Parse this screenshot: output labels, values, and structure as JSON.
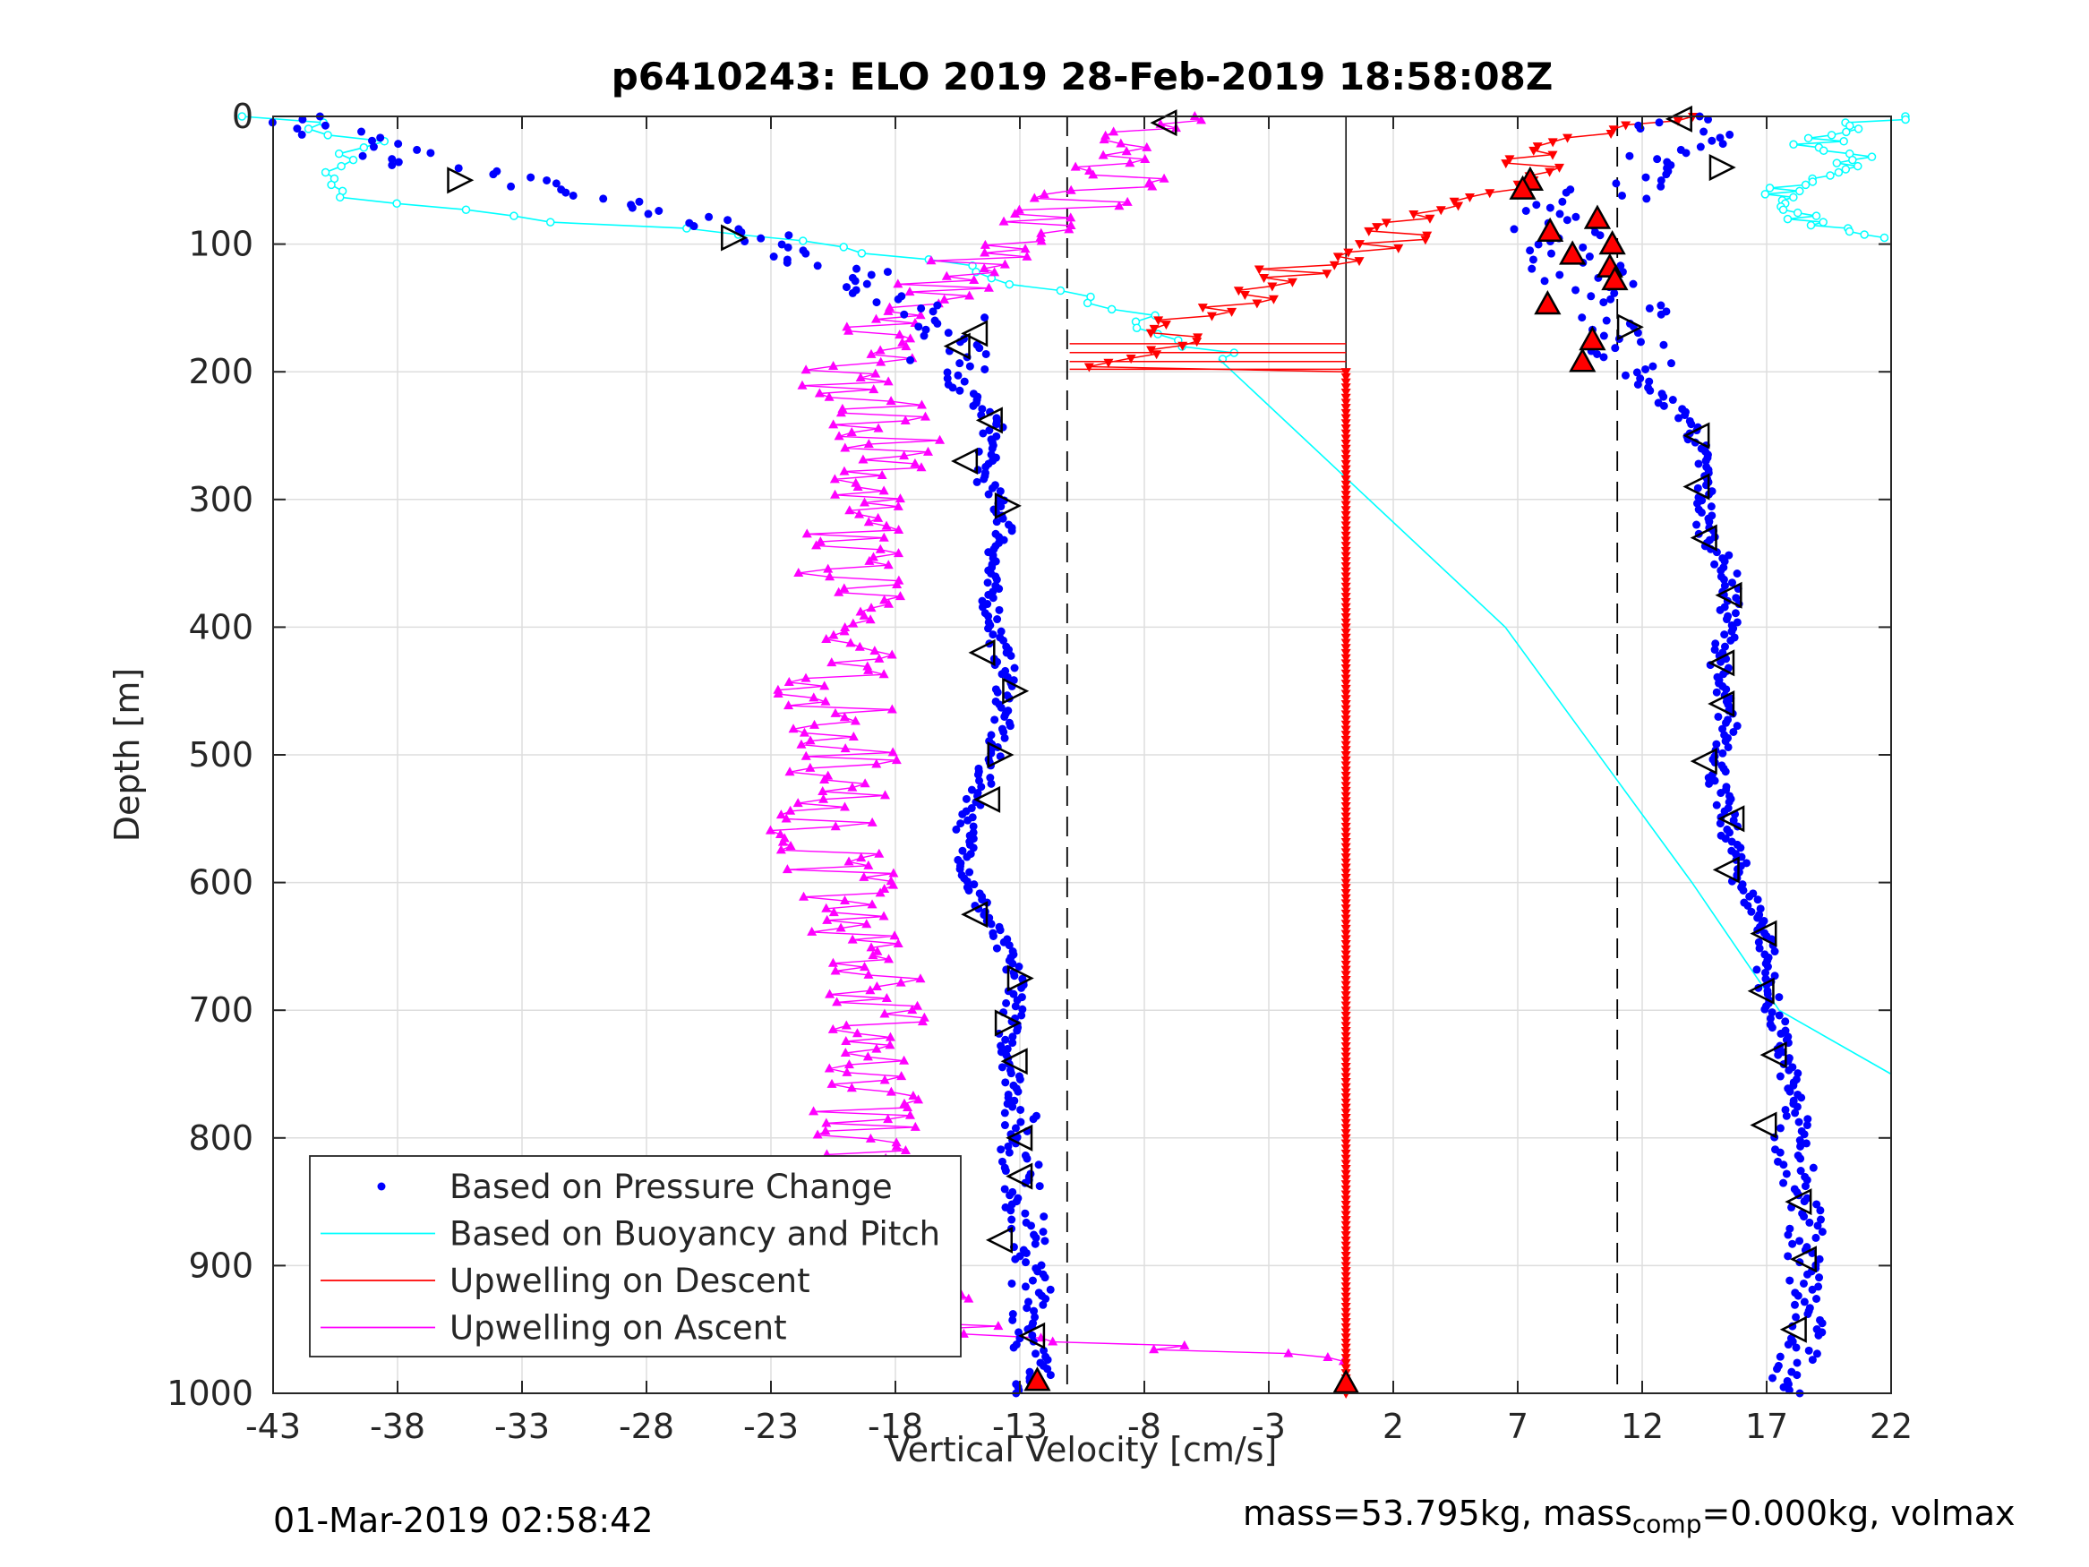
{
  "chart_data": {
    "type": "scatter",
    "title": "p6410243: ELO 2019 28-Feb-2019 18:58:08Z",
    "xlabel": "Vertical Velocity [cm/s]",
    "ylabel": "Depth [m]",
    "xlim": [
      -43,
      22
    ],
    "ylim": [
      1000,
      0
    ],
    "y_reversed": true,
    "xticks": [
      -43,
      -38,
      -33,
      -28,
      -23,
      -18,
      -13,
      -8,
      -3,
      2,
      7,
      12,
      17,
      22
    ],
    "yticks": [
      0,
      100,
      200,
      300,
      400,
      500,
      600,
      700,
      800,
      900,
      1000
    ],
    "grid": true,
    "legend_position": "bottom-left",
    "reference_lines": {
      "solid_x": 0.1,
      "dashed_x": [
        -11.1,
        11.0
      ]
    },
    "series": [
      {
        "name": "Based on Pressure Change",
        "style": "dots",
        "color": "#0000ff",
        "branches": [
          {
            "depths": [
              0,
              40,
              80,
              120,
              160,
              200,
              240,
              280,
              320,
              360,
              400,
              440,
              480,
              520,
              560,
              600,
              640,
              680,
              720,
              760,
              800,
              840,
              880,
              920,
              960,
              990
            ],
            "values": [
              -43,
              -36,
              -26,
              -20,
              -15.5,
              -16,
              -14,
              -14.5,
              -13.5,
              -14.3,
              -14,
              -13.5,
              -13.8,
              -14.5,
              -15.2,
              -15,
              -14,
              -13,
              -13.5,
              -13.2,
              -13,
              -12.9,
              -12.7,
              -12.5,
              -12.5,
              -12.4
            ]
          },
          {
            "depths": [
              0,
              40,
              80,
              120,
              160,
              200,
              240,
              280,
              320,
              360,
              400,
              440,
              480,
              520,
              560,
              600,
              640,
              680,
              720,
              760,
              800,
              840,
              880,
              920,
              960,
              990
            ],
            "values": [
              14,
              13,
              8.5,
              9.5,
              11.5,
              11.5,
              14,
              14.5,
              14.5,
              15.5,
              15.5,
              15,
              15.5,
              15,
              15.5,
              16,
              17,
              17,
              17.5,
              18,
              18,
              18.5,
              18.5,
              18.5,
              18.5,
              18
            ]
          }
        ]
      },
      {
        "name": "Based on Buoyancy and Pitch",
        "style": "line-circles",
        "color": "#00ffff",
        "segments": [
          {
            "depths": [
              0,
              20,
              40,
              60,
              80,
              90,
              100,
              110,
              130,
              150,
              170,
              190
            ],
            "values": [
              -43,
              -39,
              -41,
              -41,
              -33,
              -25,
              -22,
              -17,
              -14,
              -9,
              -7,
              -5
            ]
          },
          {
            "depths": [
              190,
              400,
              600,
              700,
              750
            ],
            "values": [
              -5,
              6.5,
              14,
              17.5,
              22
            ]
          },
          {
            "depths": [
              0,
              20,
              40,
              60,
              80,
              95
            ],
            "values": [
              22,
              19,
              21,
              17,
              18,
              22
            ]
          }
        ]
      },
      {
        "name": "Upwelling on Descent",
        "style": "line-triangle-down",
        "color": "#ff0000",
        "depths": [
          0,
          20,
          40,
          60,
          80,
          100,
          120,
          140,
          160,
          180,
          195,
          200,
          400,
          600,
          800,
          1000
        ],
        "values": [
          14,
          7,
          8,
          7,
          3,
          2,
          -2,
          -3,
          -7,
          -7,
          -11,
          0.1,
          0.1,
          0.1,
          0.1,
          0.1
        ]
      },
      {
        "name": "Upwelling on Ascent",
        "style": "line-triangle-up",
        "color": "#ff00ff",
        "depths": [
          975,
          950,
          900,
          850,
          800,
          750,
          700,
          650,
          600,
          550,
          500,
          450,
          400,
          350,
          300,
          250,
          200,
          150,
          100,
          60,
          30,
          0
        ],
        "values": [
          0,
          -16,
          -18,
          -18,
          -19,
          -19.5,
          -19,
          -19,
          -20,
          -21,
          -20,
          -20.5,
          -20,
          -20,
          -19.5,
          -18,
          -20,
          -17,
          -14,
          -10,
          -8,
          -7
        ]
      }
    ],
    "markers": {
      "open_triangles": [
        {
          "x": -7.2,
          "y": 5,
          "dir": "left"
        },
        {
          "x": -35.5,
          "y": 50,
          "dir": "right"
        },
        {
          "x": -24.5,
          "y": 95,
          "dir": "right"
        },
        {
          "x": -14.8,
          "y": 170,
          "dir": "left"
        },
        {
          "x": -15.5,
          "y": 180,
          "dir": "left"
        },
        {
          "x": -14.2,
          "y": 238,
          "dir": "left"
        },
        {
          "x": -15.2,
          "y": 270,
          "dir": "left"
        },
        {
          "x": -13.5,
          "y": 305,
          "dir": "right"
        },
        {
          "x": -14.5,
          "y": 420,
          "dir": "left"
        },
        {
          "x": -13.2,
          "y": 450,
          "dir": "right"
        },
        {
          "x": -13.8,
          "y": 500,
          "dir": "right"
        },
        {
          "x": -14.3,
          "y": 535,
          "dir": "left"
        },
        {
          "x": -14.8,
          "y": 625,
          "dir": "left"
        },
        {
          "x": -13.0,
          "y": 675,
          "dir": "right"
        },
        {
          "x": -13.5,
          "y": 710,
          "dir": "right"
        },
        {
          "x": -13.2,
          "y": 740,
          "dir": "left"
        },
        {
          "x": -13.0,
          "y": 800,
          "dir": "left"
        },
        {
          "x": -13.0,
          "y": 830,
          "dir": "left"
        },
        {
          "x": -13.8,
          "y": 880,
          "dir": "left"
        },
        {
          "x": -12.5,
          "y": 955,
          "dir": "left"
        },
        {
          "x": 13.5,
          "y": 2,
          "dir": "left"
        },
        {
          "x": 15.2,
          "y": 40,
          "dir": "right"
        },
        {
          "x": 11.5,
          "y": 165,
          "dir": "right"
        },
        {
          "x": 14.2,
          "y": 250,
          "dir": "left"
        },
        {
          "x": 14.2,
          "y": 290,
          "dir": "left"
        },
        {
          "x": 14.5,
          "y": 330,
          "dir": "left"
        },
        {
          "x": 15.5,
          "y": 375,
          "dir": "left"
        },
        {
          "x": 15.2,
          "y": 428,
          "dir": "left"
        },
        {
          "x": 15.2,
          "y": 460,
          "dir": "left"
        },
        {
          "x": 14.5,
          "y": 505,
          "dir": "left"
        },
        {
          "x": 15.6,
          "y": 550,
          "dir": "left"
        },
        {
          "x": 15.4,
          "y": 590,
          "dir": "left"
        },
        {
          "x": 16.9,
          "y": 640,
          "dir": "left"
        },
        {
          "x": 16.8,
          "y": 685,
          "dir": "left"
        },
        {
          "x": 17.3,
          "y": 735,
          "dir": "left"
        },
        {
          "x": 16.9,
          "y": 790,
          "dir": "left"
        },
        {
          "x": 18.3,
          "y": 850,
          "dir": "left"
        },
        {
          "x": 18.5,
          "y": 895,
          "dir": "left"
        },
        {
          "x": 18.1,
          "y": 950,
          "dir": "left"
        }
      ],
      "filled_triangles": [
        {
          "x": -12.3,
          "y": 990
        },
        {
          "x": 0.1,
          "y": 992
        },
        {
          "x": 7.5,
          "y": 50
        },
        {
          "x": 7.2,
          "y": 57
        },
        {
          "x": 10.2,
          "y": 80
        },
        {
          "x": 8.3,
          "y": 90
        },
        {
          "x": 10.8,
          "y": 100
        },
        {
          "x": 9.2,
          "y": 108
        },
        {
          "x": 10.7,
          "y": 118
        },
        {
          "x": 10.9,
          "y": 128
        },
        {
          "x": 8.2,
          "y": 147
        },
        {
          "x": 10.0,
          "y": 175
        },
        {
          "x": 9.6,
          "y": 192
        }
      ]
    }
  },
  "footer": {
    "timestamp": "01-Mar-2019 02:58:42",
    "mass_text": "mass=53.795kg, mass",
    "mass_sub": "comp",
    "mass_rest": "=0.000kg, volmax"
  }
}
